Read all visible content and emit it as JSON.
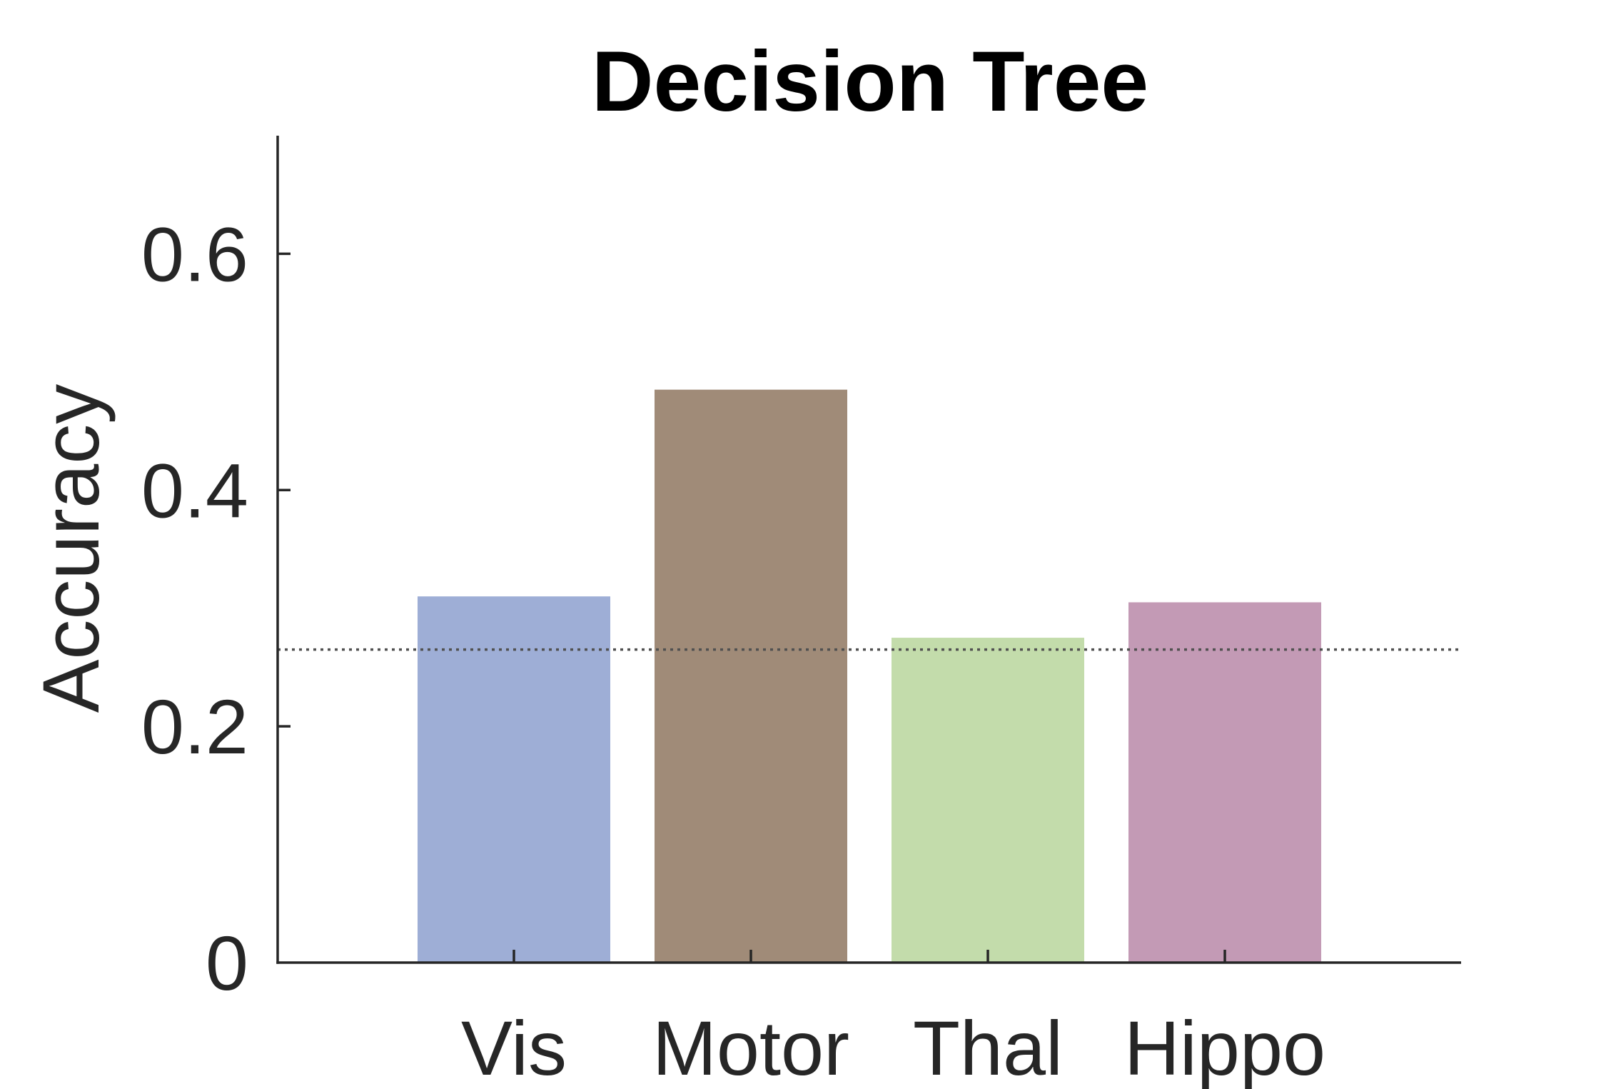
{
  "chart_data": {
    "type": "bar",
    "title": "Decision Tree",
    "xlabel": "",
    "ylabel": "Accuracy",
    "categories": [
      "Vis",
      "Motor",
      "Thal",
      "Hippo"
    ],
    "values": [
      0.31,
      0.485,
      0.275,
      0.305
    ],
    "colors": [
      "#9eaed6",
      "#a08b78",
      "#c3dcab",
      "#c39ab5"
    ],
    "ylim": [
      0,
      0.7
    ],
    "yticks": [
      0,
      0.2,
      0.4,
      0.6
    ],
    "ytick_labels": [
      "0",
      "0.2",
      "0.4",
      "0.6"
    ],
    "reference_line": {
      "value": 0.265,
      "style": "dotted",
      "color": "#505050"
    },
    "grid": false,
    "legend": "none"
  }
}
